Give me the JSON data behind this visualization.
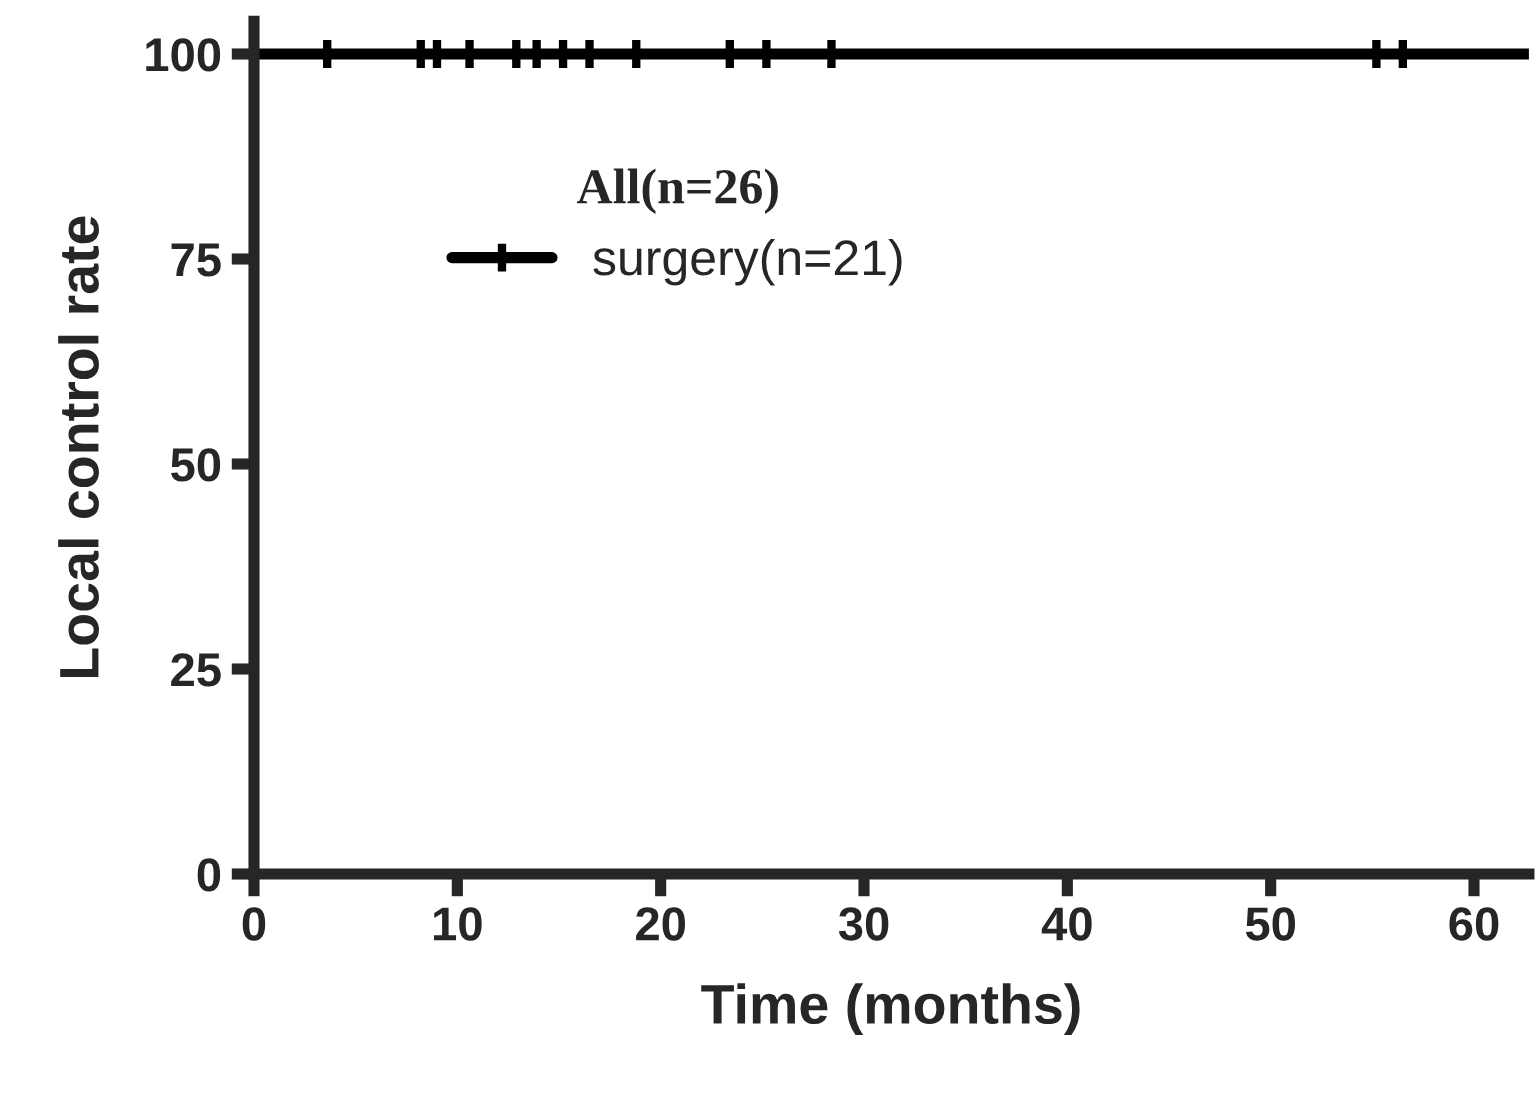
{
  "chart_data": {
    "type": "step",
    "xlabel": "Time (months)",
    "ylabel": "Local control rate",
    "legend_title": "All(n=26)",
    "legend": "top left",
    "xlim": [
      0,
      62.7
    ],
    "xticks": [
      0,
      10,
      20,
      30,
      40,
      50,
      60
    ],
    "ylim": [
      0,
      104
    ],
    "yticks": [
      0,
      25,
      50,
      75,
      100
    ],
    "grid": false,
    "series": [
      {
        "name": "surgery(n=21)",
        "color": "#000000",
        "x": [
          0,
          62.7
        ],
        "values": [
          100,
          100
        ]
      },
      {
        "type": "scatter",
        "color": "#000000",
        "marker": "cross",
        "x": [
          3.6,
          8.2,
          9.0,
          10.6,
          12.9,
          13.9,
          15.2,
          16.5,
          18.8,
          23.4,
          25.2,
          28.4,
          55.2,
          56.5
        ],
        "values": [
          100,
          100,
          100,
          100,
          100,
          100,
          100,
          100,
          100,
          100,
          100,
          100,
          100,
          100
        ]
      }
    ]
  }
}
